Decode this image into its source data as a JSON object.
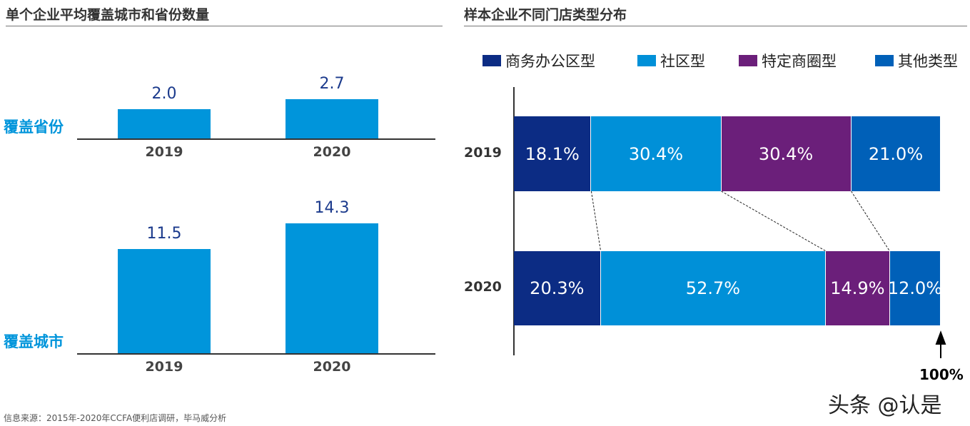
{
  "chart_data": [
    {
      "type": "bar",
      "title": "单个企业平均覆盖城市和省份数量",
      "subcharts": [
        {
          "ylabel": "覆盖省份",
          "categories": [
            "2019",
            "2020"
          ],
          "values": [
            2.0,
            2.7
          ]
        },
        {
          "ylabel": "覆盖城市",
          "categories": [
            "2019",
            "2020"
          ],
          "values": [
            11.5,
            14.3
          ]
        }
      ],
      "color": "#0095DB"
    },
    {
      "type": "bar",
      "stacked": true,
      "orientation": "horizontal",
      "title": "样本企业不同门店类型分布",
      "categories": [
        "2019",
        "2020"
      ],
      "series": [
        {
          "name": "商务办公区型",
          "color": "#0C2C84",
          "values": [
            18.1,
            20.3
          ]
        },
        {
          "name": "社区型",
          "color": "#0090D8",
          "values": [
            30.4,
            52.7
          ]
        },
        {
          "name": "特定商圈型",
          "color": "#6B1F7A",
          "values": [
            30.4,
            14.9
          ]
        },
        {
          "name": "其他类型",
          "color": "#0060B8",
          "values": [
            21.0,
            12.0
          ]
        }
      ],
      "labels": [
        [
          "18.1%",
          "30.4%",
          "30.4%",
          "21.0%"
        ],
        [
          "20.3%",
          "52.7%",
          "14.9%",
          "12.0%"
        ]
      ],
      "legend": "top",
      "annotation": "100%"
    }
  ],
  "footer": {
    "source": "信息来源：2015年-2020年CCFA便利店调研，毕马威分析",
    "watermark": "头条 @认是"
  }
}
